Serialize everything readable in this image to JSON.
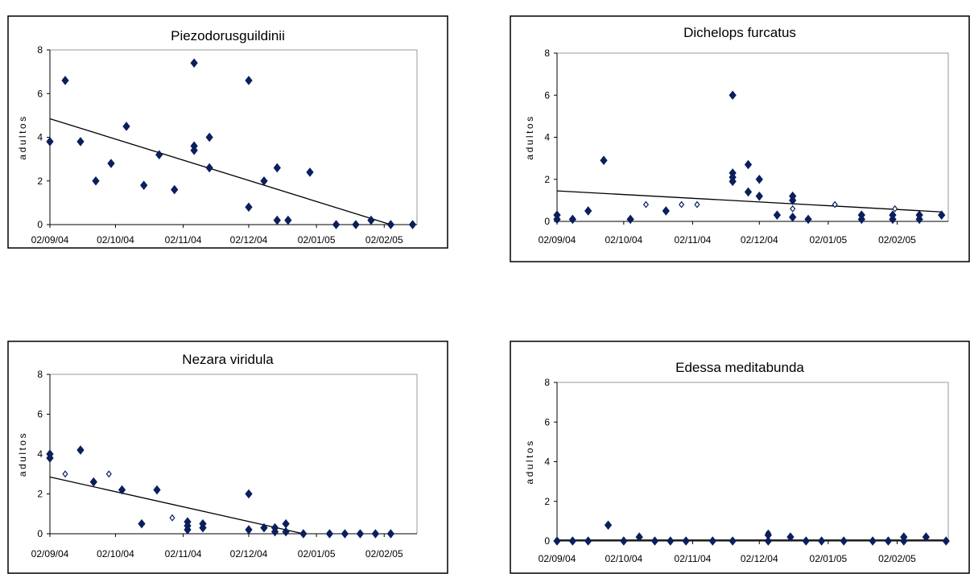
{
  "chart_data": [
    {
      "type": "scatter",
      "title": "Piezodorusguildinii",
      "xlabel": "",
      "ylabel": "adultos",
      "x_ticks": [
        "02/09/04",
        "02/10/04",
        "02/11/04",
        "02/12/04",
        "02/01/05",
        "02/02/05"
      ],
      "ylim": [
        0,
        8
      ],
      "y_ticks": [
        0,
        2,
        4,
        6,
        8
      ],
      "marker_color": "#0b1f5c",
      "points_filled": [
        {
          "x": "2004-09-02",
          "y": 3.8
        },
        {
          "x": "2004-09-09",
          "y": 6.6
        },
        {
          "x": "2004-09-16",
          "y": 3.8
        },
        {
          "x": "2004-09-23",
          "y": 2.0
        },
        {
          "x": "2004-09-30",
          "y": 2.8
        },
        {
          "x": "2004-10-07",
          "y": 4.5
        },
        {
          "x": "2004-10-15",
          "y": 1.8
        },
        {
          "x": "2004-10-22",
          "y": 3.2
        },
        {
          "x": "2004-10-29",
          "y": 1.6
        },
        {
          "x": "2004-11-07",
          "y": 7.4
        },
        {
          "x": "2004-11-07",
          "y": 3.6
        },
        {
          "x": "2004-11-07",
          "y": 3.4
        },
        {
          "x": "2004-11-14",
          "y": 4.0
        },
        {
          "x": "2004-11-14",
          "y": 2.6
        },
        {
          "x": "2004-12-02",
          "y": 6.6
        },
        {
          "x": "2004-12-02",
          "y": 0.8
        },
        {
          "x": "2004-12-09",
          "y": 2.0
        },
        {
          "x": "2004-12-15",
          "y": 2.6
        },
        {
          "x": "2004-12-15",
          "y": 0.2
        },
        {
          "x": "2004-12-20",
          "y": 0.2
        },
        {
          "x": "2004-12-30",
          "y": 2.4
        },
        {
          "x": "2005-01-11",
          "y": 0.0
        },
        {
          "x": "2005-01-20",
          "y": 0.0
        },
        {
          "x": "2005-01-27",
          "y": 0.2
        },
        {
          "x": "2005-02-05",
          "y": 0.0
        },
        {
          "x": "2005-02-15",
          "y": 0.0
        }
      ],
      "points_open": [],
      "trendline": {
        "x": [
          "2004-09-02",
          "2005-02-05"
        ],
        "y": [
          4.85,
          0.0
        ]
      }
    },
    {
      "type": "scatter",
      "title": "Dichelops furcatus",
      "xlabel": "",
      "ylabel": "adultos",
      "x_ticks": [
        "02/09/04",
        "02/10/04",
        "02/11/04",
        "02/12/04",
        "02/01/05",
        "02/02/05"
      ],
      "ylim": [
        0,
        8
      ],
      "y_ticks": [
        0,
        2,
        4,
        6,
        8
      ],
      "marker_color": "#0b1f5c",
      "points_filled": [
        {
          "x": "2004-09-02",
          "y": 0.3
        },
        {
          "x": "2004-09-02",
          "y": 0.1
        },
        {
          "x": "2004-09-09",
          "y": 0.1
        },
        {
          "x": "2004-09-16",
          "y": 0.5
        },
        {
          "x": "2004-09-23",
          "y": 2.9
        },
        {
          "x": "2004-10-05",
          "y": 0.1
        },
        {
          "x": "2004-10-21",
          "y": 0.5
        },
        {
          "x": "2004-11-20",
          "y": 6.0
        },
        {
          "x": "2004-11-20",
          "y": 2.3
        },
        {
          "x": "2004-11-20",
          "y": 2.1
        },
        {
          "x": "2004-11-20",
          "y": 1.9
        },
        {
          "x": "2004-11-27",
          "y": 2.7
        },
        {
          "x": "2004-11-27",
          "y": 1.4
        },
        {
          "x": "2004-12-02",
          "y": 2.0
        },
        {
          "x": "2004-12-02",
          "y": 1.2
        },
        {
          "x": "2004-12-10",
          "y": 0.3
        },
        {
          "x": "2004-12-17",
          "y": 1.2
        },
        {
          "x": "2004-12-17",
          "y": 1.0
        },
        {
          "x": "2004-12-17",
          "y": 0.2
        },
        {
          "x": "2004-12-24",
          "y": 0.1
        },
        {
          "x": "2005-01-17",
          "y": 0.3
        },
        {
          "x": "2005-01-17",
          "y": 0.1
        },
        {
          "x": "2005-01-31",
          "y": 0.3
        },
        {
          "x": "2005-01-31",
          "y": 0.1
        },
        {
          "x": "2005-02-12",
          "y": 0.3
        },
        {
          "x": "2005-02-12",
          "y": 0.1
        },
        {
          "x": "2005-02-22",
          "y": 0.3
        }
      ],
      "points_open": [
        {
          "x": "2004-10-12",
          "y": 0.8
        },
        {
          "x": "2004-10-28",
          "y": 0.8
        },
        {
          "x": "2004-11-04",
          "y": 0.8
        },
        {
          "x": "2004-12-17",
          "y": 0.6
        },
        {
          "x": "2005-01-05",
          "y": 0.8
        },
        {
          "x": "2005-02-01",
          "y": 0.6
        }
      ],
      "trendline": {
        "x": [
          "2004-09-02",
          "2005-02-22"
        ],
        "y": [
          1.45,
          0.45
        ]
      }
    },
    {
      "type": "scatter",
      "title": "Nezara viridula",
      "xlabel": "",
      "ylabel": "adultos",
      "x_ticks": [
        "02/09/04",
        "02/10/04",
        "02/11/04",
        "02/12/04",
        "02/01/05",
        "02/02/05"
      ],
      "ylim": [
        0,
        8
      ],
      "y_ticks": [
        0,
        2,
        4,
        6,
        8
      ],
      "marker_color": "#0b1f5c",
      "points_filled": [
        {
          "x": "2004-09-02",
          "y": 4.0
        },
        {
          "x": "2004-09-02",
          "y": 3.8
        },
        {
          "x": "2004-09-16",
          "y": 4.2
        },
        {
          "x": "2004-09-22",
          "y": 2.6
        },
        {
          "x": "2004-10-05",
          "y": 2.2
        },
        {
          "x": "2004-10-14",
          "y": 0.5
        },
        {
          "x": "2004-10-21",
          "y": 2.2
        },
        {
          "x": "2004-11-04",
          "y": 0.6
        },
        {
          "x": "2004-11-04",
          "y": 0.4
        },
        {
          "x": "2004-11-04",
          "y": 0.2
        },
        {
          "x": "2004-11-11",
          "y": 0.5
        },
        {
          "x": "2004-11-11",
          "y": 0.3
        },
        {
          "x": "2004-12-02",
          "y": 2.0
        },
        {
          "x": "2004-12-02",
          "y": 0.2
        },
        {
          "x": "2004-12-09",
          "y": 0.3
        },
        {
          "x": "2004-12-14",
          "y": 0.3
        },
        {
          "x": "2004-12-14",
          "y": 0.1
        },
        {
          "x": "2004-12-19",
          "y": 0.5
        },
        {
          "x": "2004-12-19",
          "y": 0.1
        },
        {
          "x": "2004-12-27",
          "y": 0.0
        },
        {
          "x": "2005-01-08",
          "y": 0.0
        },
        {
          "x": "2005-01-15",
          "y": 0.0
        },
        {
          "x": "2005-01-22",
          "y": 0.0
        },
        {
          "x": "2005-01-29",
          "y": 0.0
        },
        {
          "x": "2005-02-05",
          "y": 0.0
        }
      ],
      "points_open": [
        {
          "x": "2004-09-09",
          "y": 3.0
        },
        {
          "x": "2004-09-29",
          "y": 3.0
        },
        {
          "x": "2004-10-28",
          "y": 0.8
        }
      ],
      "trendline": {
        "x": [
          "2004-09-02",
          "2004-12-27"
        ],
        "y": [
          2.85,
          0.0
        ]
      }
    },
    {
      "type": "scatter",
      "title": "Edessa meditabunda",
      "xlabel": "",
      "ylabel": "adultos",
      "x_ticks": [
        "02/09/04",
        "02/10/04",
        "02/11/04",
        "02/12/04",
        "02/01/05",
        "02/02/05"
      ],
      "ylim": [
        0,
        8
      ],
      "y_ticks": [
        0,
        2,
        4,
        6,
        8
      ],
      "marker_color": "#0b1f5c",
      "points_filled": [
        {
          "x": "2004-09-02",
          "y": 0.0
        },
        {
          "x": "2004-09-09",
          "y": 0.0
        },
        {
          "x": "2004-09-16",
          "y": 0.0
        },
        {
          "x": "2004-09-25",
          "y": 0.8
        },
        {
          "x": "2004-10-02",
          "y": 0.0
        },
        {
          "x": "2004-10-09",
          "y": 0.2
        },
        {
          "x": "2004-10-16",
          "y": 0.0
        },
        {
          "x": "2004-10-23",
          "y": 0.0
        },
        {
          "x": "2004-10-30",
          "y": 0.0
        },
        {
          "x": "2004-11-11",
          "y": 0.0
        },
        {
          "x": "2004-11-20",
          "y": 0.0
        },
        {
          "x": "2004-12-06",
          "y": 0.3
        },
        {
          "x": "2004-12-06",
          "y": 0.0
        },
        {
          "x": "2004-12-16",
          "y": 0.2
        },
        {
          "x": "2004-12-23",
          "y": 0.0
        },
        {
          "x": "2004-12-30",
          "y": 0.0
        },
        {
          "x": "2005-01-09",
          "y": 0.0
        },
        {
          "x": "2005-01-22",
          "y": 0.0
        },
        {
          "x": "2005-01-29",
          "y": 0.0
        },
        {
          "x": "2005-02-05",
          "y": 0.2
        },
        {
          "x": "2005-02-05",
          "y": 0.0
        },
        {
          "x": "2005-02-15",
          "y": 0.2
        },
        {
          "x": "2005-02-24",
          "y": 0.0
        }
      ],
      "points_open": [
        {
          "x": "2004-12-06",
          "y": 0.4
        }
      ],
      "trendline": {
        "x": [
          "2004-09-02",
          "2005-02-24"
        ],
        "y": [
          0.05,
          0.05
        ]
      }
    }
  ]
}
